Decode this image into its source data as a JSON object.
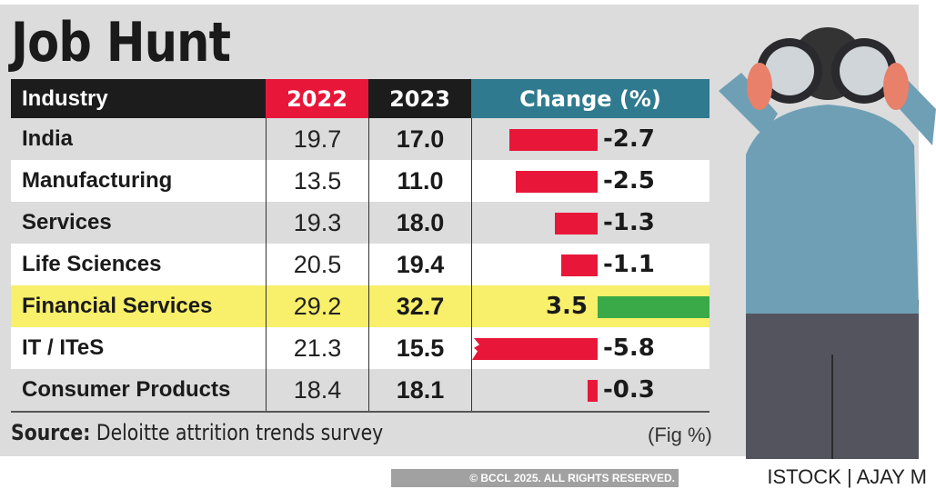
{
  "title": "Job Hunt",
  "source_label": "Source:",
  "source_text": "Deloitte attrition trends survey",
  "unit": "(Fig %)",
  "copyright": "© BCCL 2025. ALL RIGHTS RESERVED.",
  "credit": "ISTOCK | AJAY M",
  "colors": {
    "negative": "#e8173a",
    "positive": "#3aaa48",
    "highlight": "#f8ef6a",
    "header_2022": "#e8173a",
    "header_change": "#2f7a8e"
  },
  "chart_data": {
    "type": "table",
    "columns": [
      "Industry",
      "2022",
      "2023",
      "Change (%)"
    ],
    "rows": [
      {
        "industry": "India",
        "y2022": "19.7",
        "y2023": "17.0",
        "change": "-2.7",
        "value": -2.7
      },
      {
        "industry": "Manufacturing",
        "y2022": "13.5",
        "y2023": "11.0",
        "change": "-2.5",
        "value": -2.5
      },
      {
        "industry": "Services",
        "y2022": "19.3",
        "y2023": "18.0",
        "change": "-1.3",
        "value": -1.3
      },
      {
        "industry": "Life Sciences",
        "y2022": "20.5",
        "y2023": "19.4",
        "change": "-1.1",
        "value": -1.1
      },
      {
        "industry": "Financial Services",
        "y2022": "29.2",
        "y2023": "32.7",
        "change": "3.5",
        "value": 3.5,
        "highlight": true
      },
      {
        "industry": "IT / ITeS",
        "y2022": "21.3",
        "y2023": "15.5",
        "change": "-5.8",
        "value": -5.8,
        "broken_bar": true
      },
      {
        "industry": "Consumer Products",
        "y2022": "18.4",
        "y2023": "18.1",
        "change": "-0.3",
        "value": -0.3
      }
    ]
  }
}
